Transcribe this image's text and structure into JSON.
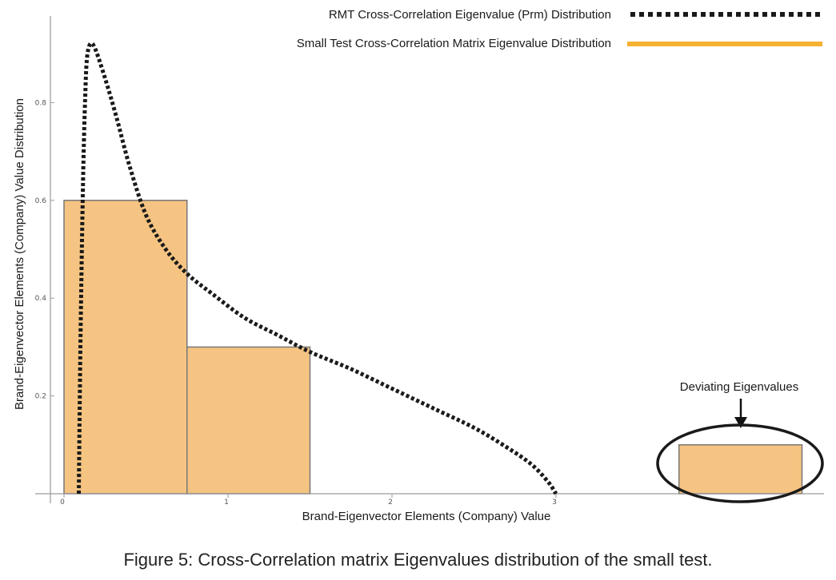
{
  "chart_data": {
    "type": "bar",
    "xlabel": "Brand-Eigenvector Elements (Company) Value",
    "ylabel": "Brand-Eigenvector Elements (Company) Value Distribution",
    "xlim": [
      -0.17,
      4.55
    ],
    "ylim": [
      0,
      0.95
    ],
    "xticks": [
      0,
      1,
      2,
      3
    ],
    "yticks": [
      0.2,
      0.4,
      0.6,
      0.8
    ],
    "grid": false,
    "legend_position": "top-right",
    "histogram": {
      "name": "Small Test Cross-Correlation Matrix Eigenvalue Distribution",
      "color": "#f5c482",
      "edge_color": "#777777",
      "bins": [
        {
          "x0": 0.0,
          "x1": 0.75,
          "value": 0.6
        },
        {
          "x0": 0.75,
          "x1": 1.5,
          "value": 0.3
        },
        {
          "x0": 3.75,
          "x1": 4.5,
          "value": 0.1
        }
      ]
    },
    "curve": {
      "name": "RMT Cross-Correlation Eigenvalue (Prm) Distribution",
      "style": "dotted",
      "color": "#1a1a1a",
      "lambda_min": 0.09,
      "lambda_max": 3.0,
      "points": [
        [
          0.09,
          0.0
        ],
        [
          0.1,
          0.3
        ],
        [
          0.11,
          0.52
        ],
        [
          0.12,
          0.7
        ],
        [
          0.13,
          0.82
        ],
        [
          0.14,
          0.89
        ],
        [
          0.16,
          0.92
        ],
        [
          0.19,
          0.91
        ],
        [
          0.25,
          0.85
        ],
        [
          0.32,
          0.77
        ],
        [
          0.4,
          0.67
        ],
        [
          0.5,
          0.57
        ],
        [
          0.62,
          0.5
        ],
        [
          0.75,
          0.45
        ],
        [
          0.9,
          0.41
        ],
        [
          1.1,
          0.36
        ],
        [
          1.3,
          0.325
        ],
        [
          1.5,
          0.29
        ],
        [
          1.75,
          0.255
        ],
        [
          2.0,
          0.215
        ],
        [
          2.25,
          0.175
        ],
        [
          2.5,
          0.135
        ],
        [
          2.7,
          0.095
        ],
        [
          2.85,
          0.06
        ],
        [
          2.95,
          0.025
        ],
        [
          3.0,
          0.0
        ]
      ]
    },
    "annotations": [
      {
        "text": "Deviating Eigenvalues",
        "target": "bin-3.75-4.5",
        "marker": "ellipse-with-arrow"
      }
    ]
  },
  "caption": "Figure 5: Cross-Correlation matrix Eigenvalues distribution of the small test."
}
